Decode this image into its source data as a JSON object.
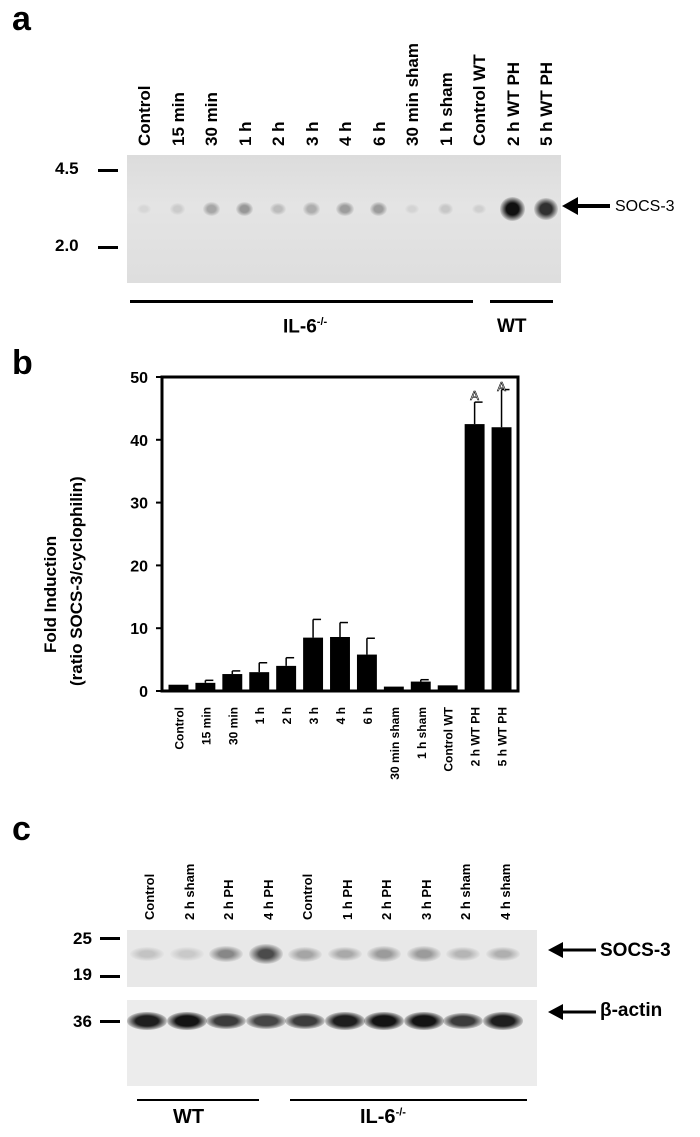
{
  "panel_a": {
    "letter": "a",
    "lanes": [
      "Control",
      "15 min",
      "30 min",
      "1 h",
      "2 h",
      "3 h",
      "4 h",
      "6 h",
      "30 min  sham",
      "1 h sham",
      "Control WT",
      "2 h WT   PH",
      "5 h WT   PH"
    ],
    "markers": [
      "4.5",
      "2.0"
    ],
    "arrow_label": "SOCS-3",
    "group_ko": "IL-6",
    "group_ko_sup": "-/-",
    "group_wt": "WT",
    "band_intensity": [
      0.03,
      0.08,
      0.25,
      0.32,
      0.15,
      0.22,
      0.3,
      0.3,
      0.04,
      0.1,
      0.06,
      0.95,
      0.8
    ]
  },
  "chart_data": {
    "type": "bar",
    "title": "",
    "ylabel": "Fold Induction",
    "ylabel2": "(ratio SOCS-3/cyclophilin)",
    "xlabel": "",
    "ylim": [
      0,
      50
    ],
    "yticks": [
      "0",
      "10",
      "20",
      "30",
      "40",
      "50"
    ],
    "categories": [
      "Control",
      "15 min",
      "30 min",
      "1 h",
      "2 h",
      "3 h",
      "4 h",
      "6 h",
      "30 min sham",
      "1 h sham",
      "Control WT",
      "2 h WT   PH",
      "5 h WT   PH"
    ],
    "values": [
      1.0,
      1.3,
      2.7,
      3.0,
      4.0,
      8.5,
      8.6,
      5.8,
      0.7,
      1.5,
      0.9,
      42.5,
      42.0
    ],
    "errors": [
      0,
      0.4,
      0.5,
      1.5,
      1.3,
      2.9,
      2.3,
      2.6,
      0,
      0.3,
      0,
      3.5,
      6.0
    ],
    "annotations": [
      "A",
      "A"
    ],
    "annotated_indices": [
      11,
      12
    ]
  },
  "panel_b": {
    "letter": "b"
  },
  "panel_c": {
    "letter": "c",
    "lanes": [
      "Control",
      "2 h sham",
      "2 h PH",
      "4 h PH",
      "Control",
      "1 h PH",
      "2 h PH",
      "3 h PH",
      "2 h sham",
      "4 h sham"
    ],
    "markers_top": [
      "25",
      "19"
    ],
    "marker_bottom": "36",
    "arrow_label_1": "SOCS-3",
    "arrow_label_2": "β-actin",
    "group_wt": "WT",
    "group_ko": "IL-6",
    "group_ko_sup": "-/-",
    "socs_intensity": [
      0.15,
      0.12,
      0.45,
      0.75,
      0.3,
      0.28,
      0.35,
      0.35,
      0.22,
      0.25
    ],
    "actin_intensity": [
      0.85,
      0.9,
      0.7,
      0.65,
      0.7,
      0.85,
      0.9,
      0.9,
      0.7,
      0.85
    ]
  }
}
